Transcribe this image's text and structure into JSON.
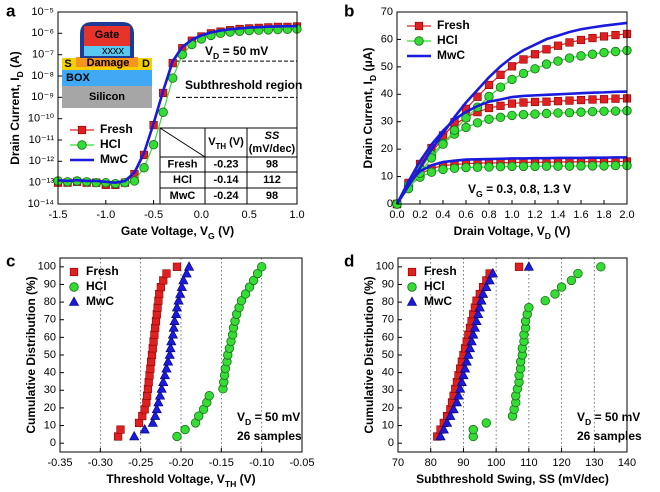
{
  "chart_data": [
    {
      "panel": "a",
      "type": "line",
      "yscale": "log",
      "xlabel": [
        "Gate Voltage, V",
        "G",
        " (V)"
      ],
      "ylabel": [
        "Drain Current, I",
        "D",
        " (A)"
      ],
      "x": [
        -1.5,
        -1.4,
        -1.3,
        -1.2,
        -1.1,
        -1.0,
        -0.9,
        -0.8,
        -0.7,
        -0.6,
        -0.5,
        -0.4,
        -0.3,
        -0.2,
        -0.1,
        0,
        0.1,
        0.2,
        0.3,
        0.4,
        0.5,
        0.6,
        0.7,
        0.8,
        0.9,
        1.0
      ],
      "xlim": [
        -1.5,
        1.0
      ],
      "xticks": [
        -1.5,
        {
          "value": -1,
          "label": "-1.0"
        },
        -0.5,
        {
          "value": 0,
          "label": "0.0"
        },
        0.5,
        {
          "value": 1,
          "label": "1.0"
        }
      ],
      "ylim": [
        1e-14,
        1e-05
      ],
      "yticks": [
        {
          "value": 1e-14,
          "label": "10⁻¹⁴"
        },
        {
          "value": 1e-13,
          "label": "10⁻¹³"
        },
        {
          "value": 1e-12,
          "label": "10⁻¹²"
        },
        {
          "value": 1e-11,
          "label": "10⁻¹¹"
        },
        {
          "value": 1e-10,
          "label": "10⁻¹⁰"
        },
        {
          "value": 1e-09,
          "label": "10⁻⁹"
        },
        {
          "value": 1e-08,
          "label": "10⁻⁸"
        },
        {
          "value": 1e-07,
          "label": "10⁻⁷"
        },
        {
          "value": 1e-06,
          "label": "10⁻⁶"
        },
        {
          "value": 1e-05,
          "label": "10⁻⁵"
        }
      ],
      "series": [
        {
          "name": "Fresh",
          "color": "#e02020",
          "marker": "square",
          "values": [
            1e-13,
            1e-13,
            1.1e-13,
            1e-13,
            1e-13,
            7.9e-14,
            7.9e-14,
            1e-13,
            2.5e-13,
            2e-12,
            5e-11,
            1.6e-09,
            4e-08,
            2e-07,
            4.5e-07,
            7.1e-07,
            1e-06,
            1.2e-06,
            1.4e-06,
            1.6e-06,
            1.7e-06,
            1.8e-06,
            1.9e-06,
            2e-06,
            2e-06,
            2.1e-06
          ]
        },
        {
          "name": "HCl",
          "color": "#33dd33",
          "marker": "circle",
          "values": [
            1.2e-13,
            1.1e-13,
            1.2e-13,
            1.1e-13,
            1e-13,
            1e-13,
            9e-14,
            1e-13,
            1.2e-13,
            5e-13,
            6e-12,
            2e-10,
            8e-09,
            1e-07,
            3e-07,
            5.5e-07,
            8e-07,
            1e-06,
            1.15e-06,
            1.25e-06,
            1.35e-06,
            1.4e-06,
            1.45e-06,
            1.5e-06,
            1.55e-06,
            1.6e-06
          ]
        },
        {
          "name": "MwC",
          "color": "#1a1adc",
          "marker": "none",
          "values": [
            1.3e-13,
            1.2e-13,
            1.3e-13,
            1.2e-13,
            1.2e-13,
            1.1e-13,
            1e-13,
            1.2e-13,
            3e-13,
            2.5e-12,
            6e-11,
            2e-09,
            5e-08,
            2.3e-07,
            5e-07,
            8e-07,
            1.1e-06,
            1.35e-06,
            1.55e-06,
            1.7e-06,
            1.85e-06,
            1.95e-06,
            2.05e-06,
            2.1e-06,
            2.15e-06,
            2.2e-06
          ]
        }
      ],
      "legend": "center left",
      "annotations": [
        [
          "V",
          "D",
          " = 50 mV"
        ],
        "Subthreshold region"
      ],
      "reference_lines": [
        5e-08,
        1e-09
      ],
      "inset": {
        "gate": "Gate",
        "gate_oxide": "xxxx",
        "damage": "Damage",
        "source": "S",
        "drain": "D",
        "box": "BOX",
        "substrate": "Silicon"
      },
      "table": {
        "vth_header": [
          "V",
          "TH",
          " (V)"
        ],
        "ss_header": [
          "SS",
          "(mV/dec)"
        ],
        "rows": [
          [
            "Fresh",
            -0.23,
            98
          ],
          [
            "HCl",
            -0.14,
            112
          ],
          [
            "MwC",
            -0.24,
            98
          ]
        ]
      }
    },
    {
      "panel": "b",
      "type": "line",
      "xlabel": [
        "Drain Voltage, V",
        "D",
        " (V)"
      ],
      "ylabel": [
        "Drain Current, I",
        "D",
        " (μA)"
      ],
      "x": [
        0,
        0.1,
        0.2,
        0.3,
        0.4,
        0.5,
        0.6,
        0.7,
        0.8,
        0.9,
        1.0,
        1.1,
        1.2,
        1.3,
        1.4,
        1.5,
        1.6,
        1.7,
        1.8,
        1.9,
        2.0
      ],
      "xlim": [
        0,
        2
      ],
      "xticks": [
        {
          "value": 0,
          "label": "0.0"
        },
        0.2,
        0.4,
        0.6,
        0.8,
        {
          "value": 1,
          "label": "1.0"
        },
        1.2,
        1.4,
        1.6,
        1.8,
        {
          "value": 2,
          "label": "2.0"
        }
      ],
      "ylim": [
        0,
        70
      ],
      "yticks": [
        0,
        10,
        20,
        30,
        40,
        50,
        60,
        70
      ],
      "series": [
        {
          "name": "Fresh",
          "color": "#e02020",
          "marker": "square",
          "values": [
            [
              0,
              7.0,
              10.9,
              12.9,
              14.0,
              14.4,
              14.7,
              14.9,
              15.0,
              15.0,
              15.1,
              15.2,
              15.2,
              15.2,
              15.3,
              15.3,
              15.4,
              15.4,
              15.4,
              15.5,
              15.5
            ],
            [
              0,
              7.7,
              14.6,
              20.4,
              25.0,
              28.9,
              31.6,
              33.5,
              35.0,
              35.8,
              36.6,
              37.0,
              37.2,
              37.3,
              37.5,
              37.7,
              37.9,
              38.1,
              38.2,
              38.4,
              38.5
            ],
            [
              0,
              6.2,
              12.4,
              18.6,
              24.2,
              29.8,
              34.7,
              39.1,
              43.4,
              47.1,
              50.2,
              52.7,
              54.6,
              56.4,
              57.7,
              58.9,
              59.8,
              60.5,
              61.1,
              61.6,
              62
            ]
          ]
        },
        {
          "name": "HCl",
          "color": "#33dd33",
          "marker": "circle",
          "values": [
            [
              0,
              6.3,
              9.8,
              11.6,
              12.6,
              13.0,
              13.3,
              13.4,
              13.5,
              13.6,
              13.7,
              13.7,
              13.7,
              13.8,
              13.8,
              13.8,
              13.9,
              13.9,
              13.9,
              14.0,
              14.0
            ],
            [
              0,
              6.8,
              12.9,
              18.0,
              22.1,
              25.5,
              27.9,
              29.6,
              30.9,
              31.6,
              32.3,
              32.6,
              32.8,
              33.0,
              33.2,
              33.3,
              33.5,
              33.7,
              33.8,
              33.9,
              34.0
            ],
            [
              0,
              5.6,
              11.2,
              16.8,
              21.8,
              26.9,
              31.4,
              35.3,
              39.2,
              42.6,
              45.4,
              47.6,
              49.3,
              51.0,
              52.1,
              53.2,
              54.0,
              54.6,
              55.2,
              55.6,
              56.0
            ]
          ]
        },
        {
          "name": "MwC",
          "color": "#1a1adc",
          "marker": "none",
          "values": [
            [
              0,
              7.7,
              11.9,
              14.1,
              15.3,
              15.8,
              16.2,
              16.3,
              16.4,
              16.5,
              16.6,
              16.6,
              16.7,
              16.7,
              16.8,
              16.8,
              16.8,
              16.9,
              16.9,
              17.0,
              17.0
            ],
            [
              0,
              8.2,
              15.6,
              21.7,
              26.7,
              30.8,
              33.6,
              35.7,
              37.3,
              38.1,
              39.0,
              39.4,
              39.6,
              39.8,
              40.0,
              40.2,
              40.4,
              40.6,
              40.7,
              40.9,
              41.0
            ],
            [
              0,
              6.6,
              13.2,
              19.8,
              25.7,
              31.7,
              37.0,
              41.6,
              46.2,
              50.2,
              53.5,
              56.1,
              58.1,
              60.1,
              61.4,
              62.7,
              63.7,
              64.4,
              65.0,
              65.5,
              66.0
            ]
          ]
        }
      ],
      "legend": "upper left",
      "annotations": [
        [
          "V",
          "G",
          " = 0.3, 0.8, 1.3 V"
        ]
      ]
    },
    {
      "panel": "c",
      "type": "scatter",
      "xlabel": [
        "Threshold Voltage, V",
        "TH",
        " (V)"
      ],
      "ylabel": "Cumulative Distribution (%)",
      "xlim": [
        -0.35,
        -0.05
      ],
      "xticks": [
        -0.35,
        {
          "value": -0.3,
          "label": "-0.30"
        },
        -0.25,
        {
          "value": -0.2,
          "label": "-0.20"
        },
        -0.15,
        {
          "value": -0.1,
          "label": "-0.10"
        },
        -0.05
      ],
      "ylim": [
        -5,
        105
      ],
      "yticks": [
        0,
        10,
        20,
        30,
        40,
        50,
        60,
        70,
        80,
        90,
        100
      ],
      "xgrid": true,
      "series": [
        {
          "name": "Fresh",
          "color": "#e02020",
          "marker": "square",
          "x": [
            -0.278,
            -0.275,
            -0.252,
            -0.248,
            -0.245,
            -0.243,
            -0.242,
            -0.241,
            -0.24,
            -0.239,
            -0.238,
            -0.237,
            -0.236,
            -0.235,
            -0.234,
            -0.233,
            -0.232,
            -0.231,
            -0.23,
            -0.229,
            -0.228,
            -0.227,
            -0.225,
            -0.222,
            -0.218,
            -0.205
          ],
          "values": [
            3.8,
            7.7,
            11.5,
            15.4,
            19.2,
            23.1,
            26.9,
            30.8,
            34.6,
            38.5,
            42.3,
            46.2,
            50.0,
            53.8,
            57.7,
            61.5,
            65.4,
            69.2,
            73.1,
            76.9,
            80.8,
            84.6,
            88.5,
            92.3,
            96.2,
            100.0
          ]
        },
        {
          "name": "HCl",
          "color": "#33dd33",
          "marker": "circle",
          "x": [
            -0.205,
            -0.195,
            -0.182,
            -0.178,
            -0.172,
            -0.168,
            -0.165,
            -0.148,
            -0.147,
            -0.146,
            -0.145,
            -0.143,
            -0.142,
            -0.14,
            -0.138,
            -0.136,
            -0.135,
            -0.133,
            -0.131,
            -0.128,
            -0.125,
            -0.12,
            -0.115,
            -0.11,
            -0.105,
            -0.1
          ],
          "values": [
            3.8,
            7.7,
            11.5,
            15.4,
            19.2,
            23.1,
            26.9,
            30.8,
            34.6,
            38.5,
            42.3,
            46.2,
            50.0,
            53.8,
            57.7,
            61.5,
            65.4,
            69.2,
            73.1,
            76.9,
            80.8,
            84.6,
            88.5,
            92.3,
            96.2,
            100.0
          ]
        },
        {
          "name": "MwC",
          "color": "#1a1adc",
          "marker": "triangle",
          "x": [
            -0.258,
            -0.245,
            -0.235,
            -0.232,
            -0.23,
            -0.228,
            -0.226,
            -0.224,
            -0.222,
            -0.22,
            -0.218,
            -0.216,
            -0.214,
            -0.213,
            -0.212,
            -0.21,
            -0.209,
            -0.208,
            -0.206,
            -0.205,
            -0.203,
            -0.201,
            -0.199,
            -0.197,
            -0.193,
            -0.19
          ],
          "values": [
            3.8,
            7.7,
            11.5,
            15.4,
            19.2,
            23.1,
            26.9,
            30.8,
            34.6,
            38.5,
            42.3,
            46.2,
            50.0,
            53.8,
            57.7,
            61.5,
            65.4,
            69.2,
            73.1,
            76.9,
            80.8,
            84.6,
            88.5,
            92.3,
            96.2,
            100.0
          ]
        }
      ],
      "legend": "upper left",
      "annotations": [
        [
          "V",
          "D",
          " = 50 mV"
        ],
        "26 samples"
      ]
    },
    {
      "panel": "d",
      "type": "scatter",
      "xlabel": "Subthreshold Swing, SS (mV/dec)",
      "ylabel": "Cumulative Distribution (%)",
      "xlim": [
        70,
        140
      ],
      "xticks": [
        70,
        80,
        90,
        100,
        110,
        120,
        130,
        140
      ],
      "ylim": [
        -5,
        105
      ],
      "yticks": [
        0,
        10,
        20,
        30,
        40,
        50,
        60,
        70,
        80,
        90,
        100
      ],
      "xgrid": true,
      "series": [
        {
          "name": "Fresh",
          "color": "#e02020",
          "marker": "square",
          "x": [
            82,
            83,
            84,
            85,
            86,
            86.5,
            87,
            87.5,
            88,
            88.5,
            89,
            89.5,
            90,
            90.5,
            91,
            91.5,
            92,
            92.5,
            93,
            93.5,
            94,
            95,
            96,
            97,
            98,
            107
          ],
          "values": [
            3.8,
            7.7,
            11.5,
            15.4,
            19.2,
            23.1,
            26.9,
            30.8,
            34.6,
            38.5,
            42.3,
            46.2,
            50.0,
            53.8,
            57.7,
            61.5,
            65.4,
            69.2,
            73.1,
            76.9,
            80.8,
            84.6,
            88.5,
            92.3,
            96.2,
            100.0
          ]
        },
        {
          "name": "HCl",
          "color": "#33dd33",
          "marker": "circle",
          "x": [
            93,
            93,
            97,
            105,
            105.5,
            106,
            106,
            106.5,
            107,
            107,
            107.5,
            107.5,
            108,
            108,
            108.5,
            108.5,
            109,
            109,
            109.5,
            110,
            115,
            118,
            120,
            123,
            125,
            132
          ],
          "values": [
            3.8,
            7.7,
            11.5,
            15.4,
            19.2,
            23.1,
            26.9,
            30.8,
            34.6,
            38.5,
            42.3,
            46.2,
            50.0,
            53.8,
            57.7,
            61.5,
            65.4,
            69.2,
            73.1,
            76.9,
            80.8,
            84.6,
            88.5,
            92.3,
            96.2,
            100.0
          ]
        },
        {
          "name": "MwC",
          "color": "#1a1adc",
          "marker": "triangle",
          "x": [
            83,
            84,
            85,
            86,
            87,
            88,
            88.5,
            89,
            89.5,
            90,
            90.5,
            91,
            91.5,
            92,
            92.5,
            93,
            93.5,
            94,
            94.5,
            95,
            95.5,
            96,
            97,
            98,
            99,
            110
          ],
          "values": [
            3.8,
            7.7,
            11.5,
            15.4,
            19.2,
            23.1,
            26.9,
            30.8,
            34.6,
            38.5,
            42.3,
            46.2,
            50.0,
            53.8,
            57.7,
            61.5,
            65.4,
            69.2,
            73.1,
            76.9,
            80.8,
            84.6,
            88.5,
            92.3,
            96.2,
            100.0
          ]
        }
      ],
      "legend": "upper left",
      "annotations": [
        [
          "V",
          "D",
          " = 50 mV"
        ],
        "26 samples"
      ]
    }
  ]
}
